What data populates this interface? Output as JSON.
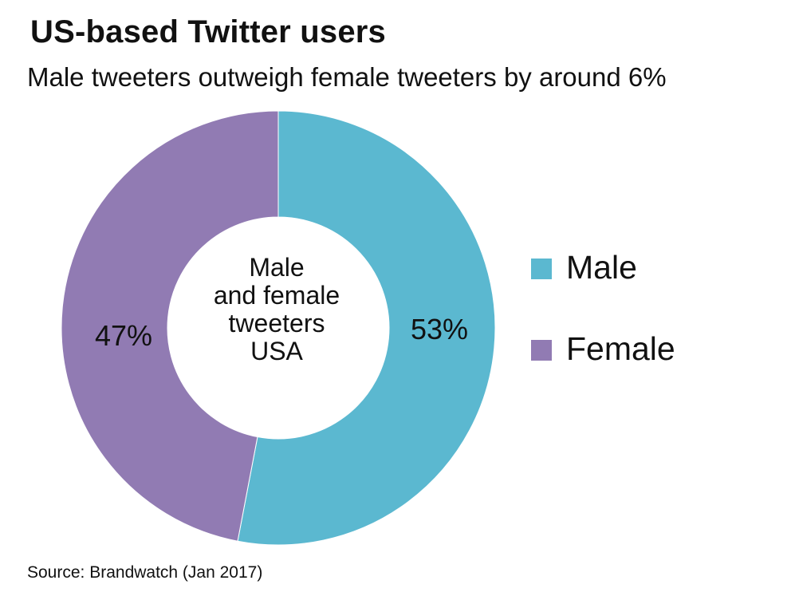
{
  "chart_data": {
    "type": "pie",
    "title": "US-based Twitter users",
    "subtitle": "Male tweeters outweigh female tweeters by around 6%",
    "center_label": [
      "Male",
      "and female",
      "tweeters",
      "USA"
    ],
    "categories": [
      "Male",
      "Female"
    ],
    "values": [
      53,
      47
    ],
    "value_labels": [
      "53%",
      "47%"
    ],
    "colors": [
      "#5bb8d0",
      "#917bb3"
    ],
    "legend_position": "right",
    "source": "Source: Brandwatch (Jan 2017)"
  }
}
